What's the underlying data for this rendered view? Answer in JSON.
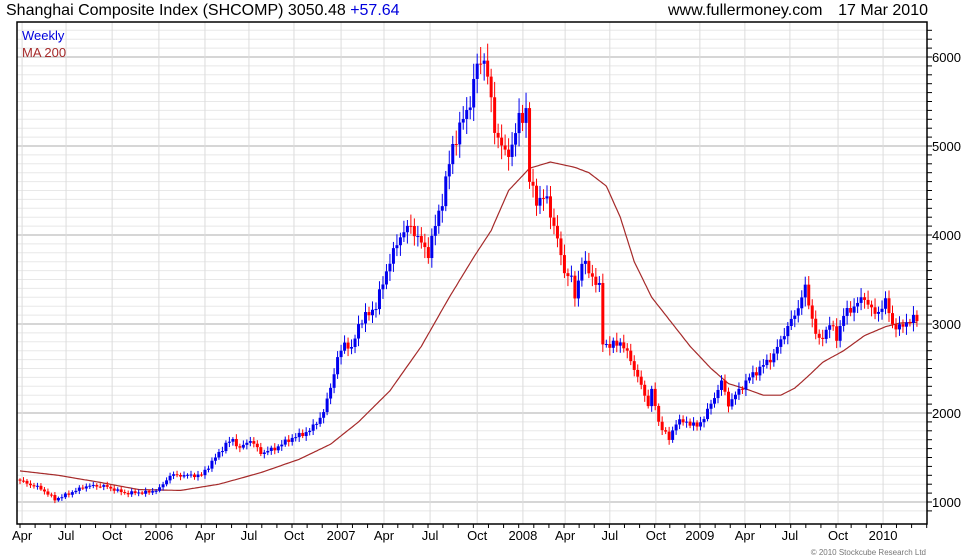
{
  "header": {
    "title": "Shanghai Composite Index (SHCOMP) 3050.48",
    "change": "+57.64",
    "site": "www.fullermoney.com",
    "date": "17 Mar 2010"
  },
  "footer": {
    "copyright": "© 2010 Stockcube Research Ltd"
  },
  "colors": {
    "up": "#0000ee",
    "down": "#ff0000",
    "ma": "#a52a2a",
    "legend_weekly": "#0000dd"
  },
  "chart_data": {
    "type": "candlestick",
    "title": "Shanghai Composite Index (SHCOMP)",
    "legend": [
      {
        "label": "Weekly",
        "color": "#0000dd"
      },
      {
        "label": "MA 200",
        "color": "#a52a2a"
      }
    ],
    "legend_position": "top-left",
    "x_unit": "weeks since early Apr 2005",
    "ylim": [
      850,
      6500
    ],
    "y_ticks": [
      1000,
      2000,
      3000,
      4000,
      5000,
      6000
    ],
    "grid": true,
    "x_ticks": [
      {
        "label": "Apr",
        "week": 0.6
      },
      {
        "label": "Jul",
        "week": 13.2
      },
      {
        "label": "Oct",
        "week": 26.4
      },
      {
        "label": "2006",
        "week": 39.8
      },
      {
        "label": "Apr",
        "week": 53
      },
      {
        "label": "Jul",
        "week": 65.6
      },
      {
        "label": "Oct",
        "week": 78.5
      },
      {
        "label": "2007",
        "week": 92
      },
      {
        "label": "Apr",
        "week": 104.3
      },
      {
        "label": "Jul",
        "week": 117.5
      },
      {
        "label": "Oct",
        "week": 131
      },
      {
        "label": "2008",
        "week": 144.1
      },
      {
        "label": "Apr",
        "week": 156.2
      },
      {
        "label": "Jul",
        "week": 169
      },
      {
        "label": "Oct",
        "week": 182.2
      },
      {
        "label": "2009",
        "week": 194.8
      },
      {
        "label": "Apr",
        "week": 207.7
      },
      {
        "label": "Jul",
        "week": 220.6
      },
      {
        "label": "Oct",
        "week": 234.4
      },
      {
        "label": "2010",
        "week": 247.3
      }
    ],
    "weekly_close_keypoints": [
      [
        0,
        1240
      ],
      [
        6,
        1150
      ],
      [
        10,
        1030
      ],
      [
        12,
        1060
      ],
      [
        19,
        1180
      ],
      [
        24,
        1180
      ],
      [
        30,
        1100
      ],
      [
        37,
        1110
      ],
      [
        40,
        1150
      ],
      [
        43,
        1300
      ],
      [
        52,
        1300
      ],
      [
        54,
        1400
      ],
      [
        59,
        1650
      ],
      [
        61,
        1700
      ],
      [
        63,
        1600
      ],
      [
        66,
        1700
      ],
      [
        69,
        1550
      ],
      [
        73,
        1600
      ],
      [
        77,
        1700
      ],
      [
        83,
        1800
      ],
      [
        87,
        2000
      ],
      [
        91,
        2600
      ],
      [
        93,
        2800
      ],
      [
        95,
        2700
      ],
      [
        97,
        3000
      ],
      [
        102,
        3200
      ],
      [
        105,
        3600
      ],
      [
        109,
        4000
      ],
      [
        112,
        4100
      ],
      [
        115,
        3900
      ],
      [
        117,
        3800
      ],
      [
        121,
        4400
      ],
      [
        124,
        5000
      ],
      [
        127,
        5300
      ],
      [
        129,
        5500
      ],
      [
        131,
        5900
      ],
      [
        133,
        6000
      ],
      [
        135,
        5500
      ],
      [
        136,
        5200
      ],
      [
        139,
        4900
      ],
      [
        141,
        5000
      ],
      [
        143,
        5300
      ],
      [
        145,
        5400
      ],
      [
        146,
        4600
      ],
      [
        148,
        4400
      ],
      [
        151,
        4400
      ],
      [
        153,
        4100
      ],
      [
        156,
        3600
      ],
      [
        158,
        3500
      ],
      [
        159,
        3300
      ],
      [
        161,
        3700
      ],
      [
        163,
        3600
      ],
      [
        166,
        3400
      ],
      [
        167,
        2800
      ],
      [
        169,
        2750
      ],
      [
        172,
        2800
      ],
      [
        175,
        2600
      ],
      [
        178,
        2300
      ],
      [
        180,
        2100
      ],
      [
        181,
        2250
      ],
      [
        183,
        1900
      ],
      [
        186,
        1700
      ],
      [
        188,
        1900
      ],
      [
        191,
        1900
      ],
      [
        194,
        1850
      ],
      [
        196,
        1950
      ],
      [
        198,
        2100
      ],
      [
        201,
        2350
      ],
      [
        203,
        2100
      ],
      [
        206,
        2250
      ],
      [
        209,
        2400
      ],
      [
        212,
        2500
      ],
      [
        216,
        2650
      ],
      [
        219,
        2900
      ],
      [
        222,
        3100
      ],
      [
        225,
        3400
      ],
      [
        228,
        2900
      ],
      [
        229,
        2800
      ],
      [
        232,
        3000
      ],
      [
        234,
        2850
      ],
      [
        236,
        3100
      ],
      [
        239,
        3200
      ],
      [
        242,
        3300
      ],
      [
        245,
        3100
      ],
      [
        248,
        3250
      ],
      [
        250,
        3000
      ],
      [
        252,
        2950
      ],
      [
        255,
        3050
      ],
      [
        257,
        3050
      ]
    ],
    "ma200_keypoints": [
      [
        0,
        1350
      ],
      [
        11,
        1300
      ],
      [
        23,
        1220
      ],
      [
        34,
        1140
      ],
      [
        46,
        1130
      ],
      [
        57,
        1200
      ],
      [
        69,
        1330
      ],
      [
        80,
        1480
      ],
      [
        89,
        1650
      ],
      [
        97,
        1900
      ],
      [
        106,
        2250
      ],
      [
        115,
        2750
      ],
      [
        123,
        3300
      ],
      [
        130,
        3750
      ],
      [
        135,
        4050
      ],
      [
        140,
        4500
      ],
      [
        146,
        4750
      ],
      [
        152,
        4820
      ],
      [
        159,
        4760
      ],
      [
        163,
        4700
      ],
      [
        168,
        4550
      ],
      [
        172,
        4200
      ],
      [
        176,
        3700
      ],
      [
        181,
        3300
      ],
      [
        186,
        3050
      ],
      [
        192,
        2750
      ],
      [
        198,
        2500
      ],
      [
        203,
        2330
      ],
      [
        208,
        2270
      ],
      [
        213,
        2200
      ],
      [
        218,
        2200
      ],
      [
        222,
        2280
      ],
      [
        226,
        2420
      ],
      [
        230,
        2570
      ],
      [
        236,
        2700
      ],
      [
        242,
        2870
      ],
      [
        248,
        2970
      ],
      [
        252,
        3010
      ],
      [
        257,
        3020
      ]
    ]
  }
}
